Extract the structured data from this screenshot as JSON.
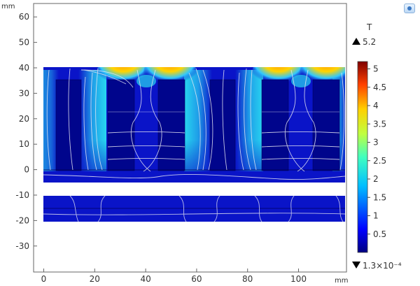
{
  "toolbar": {
    "icon": "screenshot-icon"
  },
  "plot": {
    "units": {
      "y": "mm",
      "x": "mm"
    },
    "y_ticks": [
      "60",
      "50",
      "40",
      "30",
      "20",
      "10",
      "0",
      "-10",
      "-20",
      "-30"
    ],
    "x_ticks": [
      "0",
      "20",
      "40",
      "60",
      "80",
      "100"
    ]
  },
  "colorbar": {
    "title": "T",
    "max_label": "5.2",
    "min_label": "1.3×10⁻⁴",
    "ticks": [
      "5",
      "4.5",
      "4",
      "3.5",
      "3",
      "2.5",
      "2",
      "1.5",
      "1",
      "0.5"
    ]
  },
  "colors": {
    "background": "#ffffff",
    "domain_dark": "#00058c",
    "domain_base": "#0a14c8",
    "flux_high": "#ff9a00",
    "flux_mid": "#00c8e8",
    "streamline": "#e6e6f2"
  },
  "chart_data": {
    "type": "heatmap",
    "title": "",
    "xlabel": "mm",
    "ylabel": "mm",
    "xlim": [
      -3,
      119
    ],
    "ylim": [
      -39,
      66
    ],
    "colorbar": {
      "quantity": "T",
      "min": 0.00013,
      "max": 5.2,
      "ticks": [
        0.5,
        1,
        1.5,
        2,
        2.5,
        3,
        3.5,
        4,
        4.5,
        5
      ]
    },
    "regions": [
      {
        "name": "upper domain",
        "x": [
          0,
          118
        ],
        "y": [
          -5,
          40
        ]
      },
      {
        "name": "lower strip",
        "x": [
          0,
          118
        ],
        "y": [
          -20,
          -10
        ]
      }
    ],
    "hot_spots_T": [
      {
        "x": 33,
        "y": 37,
        "value": 3.8
      },
      {
        "x": 55,
        "y": 37,
        "value": 3.8
      },
      {
        "x": 93,
        "y": 37,
        "value": 3.8
      },
      {
        "x": 114,
        "y": 37,
        "value": 3.8
      }
    ]
  }
}
